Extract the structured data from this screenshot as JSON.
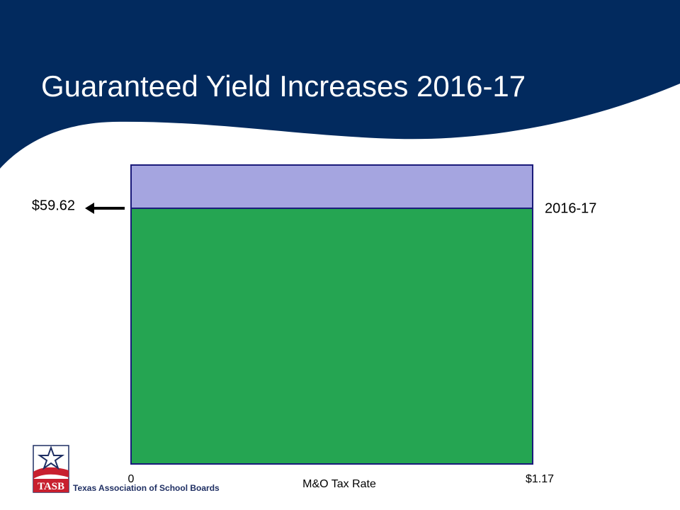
{
  "slide": {
    "title": "Guaranteed Yield Increases 2016-17",
    "colors": {
      "banner": "#022a5e",
      "white": "#ffffff"
    }
  },
  "chart_data": {
    "type": "area",
    "title": "",
    "xlabel": "M&O Tax Rate",
    "x_ticks": [
      "0",
      "$1.17"
    ],
    "xlim": [
      0,
      1.17
    ],
    "ylim": [
      0,
      69.7
    ],
    "y_marker": {
      "label": "$59.62",
      "value": 59.62
    },
    "series": [
      {
        "name": "2016-17",
        "value": 59.62,
        "color": "#25a552"
      },
      {
        "name": "",
        "value": 69.7,
        "color": "#a5a5e0"
      }
    ],
    "border_color": "#1a1a7a"
  },
  "logo": {
    "mark": "TASB",
    "org_name": "Texas Association of School Boards",
    "icon": "star-icon",
    "colors": {
      "navy": "#1f2f63",
      "red": "#c8202f"
    }
  }
}
